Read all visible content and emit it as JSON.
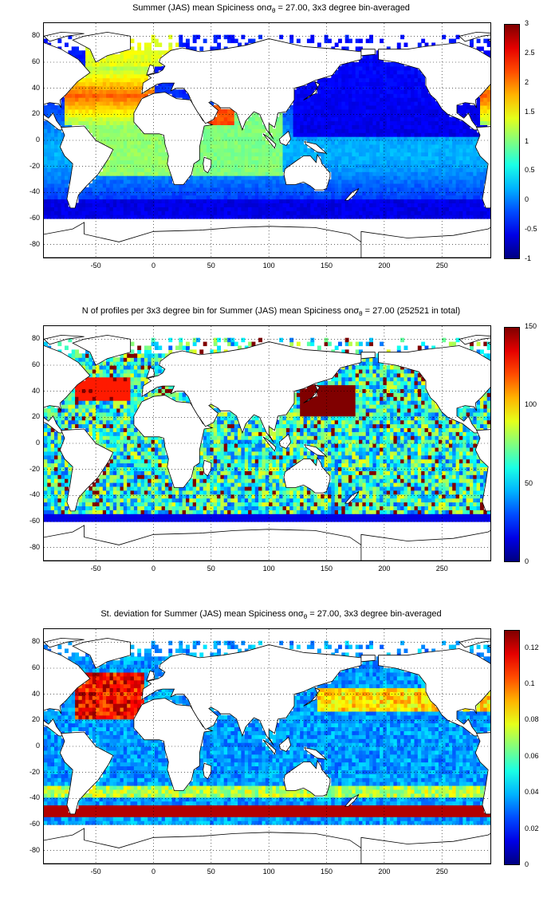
{
  "panels": [
    {
      "title_pre": "Summer (JAS) mean Spiciness on",
      "title_sigma": "σ",
      "title_sub": "θ",
      "title_post": " = 27.00, 3x3 degree bin-averaged",
      "colorbar": {
        "min": -1,
        "max": 3,
        "ticks": [
          "3",
          "2.5",
          "2",
          "1.5",
          "1",
          "0.5",
          "0",
          "-0.5",
          "-1"
        ]
      }
    },
    {
      "title_pre": "N of profiles per 3x3 degree bin for Summer (JAS) mean Spiciness on",
      "title_sigma": "σ",
      "title_sub": "θ",
      "title_post": " = 27.00 (252521 in total)",
      "colorbar": {
        "min": 0,
        "max": 150,
        "ticks": [
          "150",
          "100",
          "50",
          "0"
        ]
      }
    },
    {
      "title_pre": "St. deviation for Summer (JAS) mean Spiciness on",
      "title_sigma": "σ",
      "title_sub": "θ",
      "title_post": " = 27.00, 3x3 degree bin-averaged",
      "colorbar": {
        "min": 0,
        "max": 0.13,
        "ticks": [
          "0.12",
          "0.1",
          "0.08",
          "0.06",
          "0.04",
          "0.02",
          "0"
        ]
      }
    }
  ],
  "axes": {
    "x_ticks": [
      "-50",
      "0",
      "50",
      "100",
      "150",
      "200",
      "250"
    ],
    "y_ticks": [
      "80",
      "60",
      "40",
      "20",
      "0",
      "-20",
      "-40",
      "-60",
      "-80"
    ],
    "x_range": [
      -95,
      292
    ],
    "y_range": [
      -90,
      90
    ]
  },
  "colormap": "jet",
  "grid": "dotted"
}
